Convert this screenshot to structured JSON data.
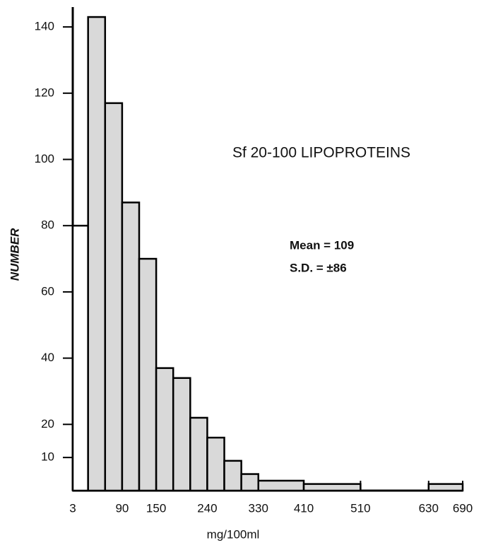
{
  "chart_data": {
    "type": "histogram",
    "title": "Sf 20-100 LIPOPROTEINS",
    "annotations": [
      "Mean = 109",
      "S.D. = ±86"
    ],
    "xlabel": "mg/100ml",
    "ylabel": "NUMBER",
    "bins": [
      3,
      30,
      60,
      90,
      120,
      150,
      180,
      210,
      240,
      270,
      300,
      330,
      410,
      510,
      630,
      690
    ],
    "values": [
      80,
      143,
      117,
      87,
      70,
      37,
      34,
      22,
      16,
      9,
      5,
      3,
      2,
      0,
      2
    ],
    "colors": [
      "#ffffff",
      "#d9d9d9",
      "#d9d9d9",
      "#d9d9d9",
      "#d9d9d9",
      "#d9d9d9",
      "#d9d9d9",
      "#d9d9d9",
      "#d9d9d9",
      "#d9d9d9",
      "#d9d9d9",
      "#d9d9d9",
      "#d9d9d9",
      "#d9d9d9",
      "#d9d9d9"
    ],
    "xlim": [
      3,
      690
    ],
    "xticks": [
      3,
      90,
      150,
      240,
      330,
      410,
      510,
      630,
      690
    ],
    "ylim": [
      0,
      146
    ],
    "yticks": [
      10,
      20,
      40,
      60,
      80,
      100,
      120,
      140
    ]
  }
}
